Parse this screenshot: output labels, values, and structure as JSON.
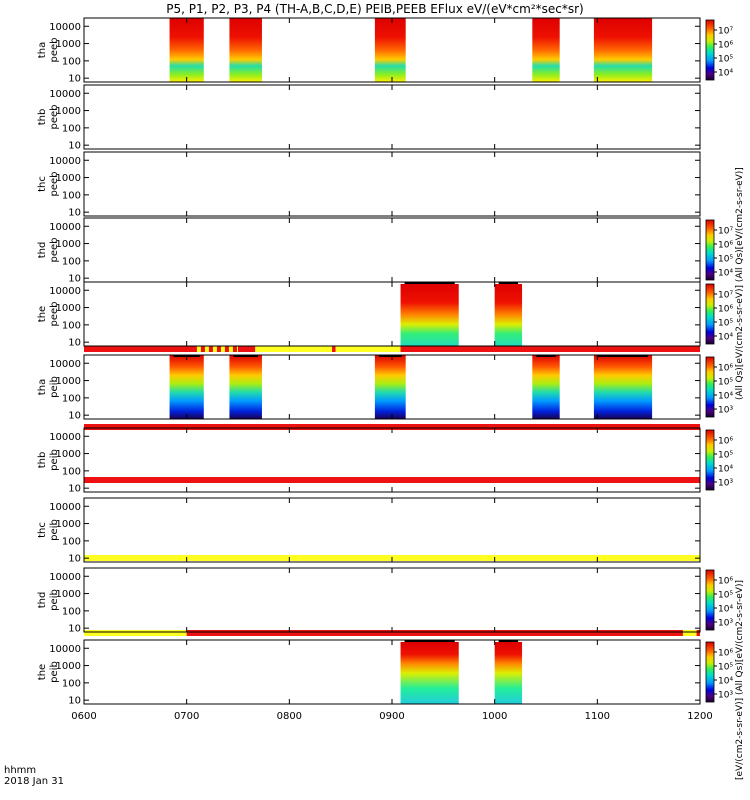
{
  "title": "P5, P1, P2, P3, P4 (TH-A,B,C,D,E) PEIB,PEEB EFlux eV/(eV*cm²*sec*sr)",
  "footer": {
    "line1": "hhmm",
    "line2": "2018 Jan 31"
  },
  "colorbar_labels": {
    "electron": "(All Qs)[eV/(cm2-s-sr-eV)] (All Qs)[eV/(cm2-s-sr-eV)]",
    "ion": "[eV/(cm2-s-sr-eV)] (All Qs)[eV/(cm2-s-sr-eV)]"
  },
  "colors": {
    "red": "#ee1111",
    "yellow": "#ffff22",
    "scale": [
      "#1a0033",
      "#4b0082",
      "#0000cc",
      "#0044ff",
      "#0099ff",
      "#00ddee",
      "#22ee88",
      "#88ee22",
      "#ddee00",
      "#ffcc00",
      "#ff8800",
      "#ff3300",
      "#dd0000"
    ]
  },
  "chart_data": {
    "type": "heatmap",
    "x_ticks": [
      "0600",
      "0700",
      "0800",
      "0900",
      "1000",
      "1100",
      "1200"
    ],
    "xlim": [
      "06:00",
      "12:00"
    ],
    "y_ticks": [
      "10",
      "100",
      "1000",
      "10000"
    ],
    "panels": [
      {
        "label1": "tha",
        "label2": "peeb",
        "colorbar": true,
        "cb_ticks": [
          "10⁷",
          "10⁶",
          "10⁵",
          "10⁴"
        ],
        "cb_sup": [
          7,
          6,
          5,
          4
        ],
        "segments": [
          [
            "06:50",
            "07:10"
          ],
          [
            "07:25",
            "07:44"
          ],
          [
            "08:50",
            "09:08"
          ],
          [
            "10:22",
            "10:38"
          ],
          [
            "10:58",
            "11:32"
          ]
        ]
      },
      {
        "label1": "thb",
        "label2": "peeb",
        "colorbar": false,
        "cb_ticks": [],
        "cb_sup": [],
        "segments": []
      },
      {
        "label1": "thc",
        "label2": "peeb",
        "colorbar": false,
        "cb_ticks": [],
        "cb_sup": [],
        "segments": []
      },
      {
        "label1": "thd",
        "label2": "peeb",
        "colorbar": true,
        "cb_ticks": [
          "10⁷",
          "10⁶",
          "10⁵",
          "10⁴"
        ],
        "cb_sup": [
          7,
          6,
          5,
          4
        ],
        "segments": []
      },
      {
        "label1": "the",
        "label2": "peeb",
        "colorbar": true,
        "cb_ticks": [
          "10⁷",
          "10⁶",
          "10⁵",
          "10⁴"
        ],
        "cb_sup": [
          7,
          6,
          5,
          4
        ],
        "segments": [
          [
            "09:05",
            "09:39"
          ],
          [
            "10:00",
            "10:16"
          ]
        ]
      },
      {
        "label1": "tha",
        "label2": "peib",
        "colorbar": true,
        "cb_ticks": [
          "10⁶",
          "10⁵",
          "10⁴",
          "10³"
        ],
        "cb_sup": [
          6,
          5,
          4,
          3
        ],
        "segments": [
          [
            "06:50",
            "07:10"
          ],
          [
            "07:25",
            "07:44"
          ],
          [
            "08:50",
            "09:08"
          ],
          [
            "10:22",
            "10:38"
          ],
          [
            "10:58",
            "11:32"
          ]
        ]
      },
      {
        "label1": "thb",
        "label2": "peib",
        "colorbar": true,
        "cb_ticks": [
          "10⁶",
          "10⁵",
          "10⁴",
          "10³"
        ],
        "cb_sup": [
          6,
          5,
          4,
          3
        ],
        "segments": []
      },
      {
        "label1": "thc",
        "label2": "peib",
        "colorbar": false,
        "cb_ticks": [],
        "cb_sup": [],
        "segments": []
      },
      {
        "label1": "thd",
        "label2": "peib",
        "colorbar": true,
        "cb_ticks": [
          "10⁶",
          "10⁵",
          "10⁴",
          "10³"
        ],
        "cb_sup": [
          6,
          5,
          4,
          3
        ],
        "segments": []
      },
      {
        "label1": "the",
        "label2": "peib",
        "colorbar": true,
        "cb_ticks": [
          "10⁶",
          "10⁵",
          "10⁴",
          "10³"
        ],
        "cb_sup": [
          6,
          5,
          4,
          3
        ],
        "segments": [
          [
            "09:05",
            "09:39"
          ],
          [
            "10:00",
            "10:16"
          ]
        ]
      }
    ],
    "status_bars": [
      {
        "after_panel": 4,
        "base": "red",
        "overlays": [
          [
            "07:06",
            "07:30",
            "yellow_red_dash"
          ],
          [
            "07:30",
            "07:40",
            "red"
          ],
          [
            "07:40",
            "08:25",
            "yellow"
          ],
          [
            "08:25",
            "08:27",
            "red"
          ],
          [
            "08:27",
            "09:05",
            "yellow"
          ],
          [
            "09:05",
            "09:07",
            "red"
          ]
        ]
      },
      {
        "after_panel": 5,
        "base": "red",
        "overlays": []
      },
      {
        "after_panel": 6,
        "base": "red",
        "overlays": []
      },
      {
        "after_panel": 7,
        "base": "yellow",
        "overlays": []
      },
      {
        "after_panel": 8,
        "base": "red",
        "overlays": [
          [
            "06:00",
            "07:00",
            "yellow"
          ],
          [
            "11:50",
            "11:58",
            "yellow"
          ]
        ]
      }
    ]
  }
}
